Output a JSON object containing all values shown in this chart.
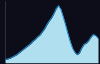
{
  "x": [
    0,
    1,
    2,
    3,
    4,
    5,
    6,
    7,
    8,
    9,
    10,
    11,
    12,
    13,
    14,
    15,
    16,
    17,
    18,
    19,
    20,
    21,
    22,
    23,
    24,
    25,
    26,
    27,
    28,
    29,
    30,
    31,
    32,
    33,
    34,
    35,
    36,
    37,
    38,
    39,
    40
  ],
  "y": [
    0.05,
    0.06,
    0.07,
    0.09,
    0.11,
    0.13,
    0.16,
    0.19,
    0.22,
    0.25,
    0.28,
    0.31,
    0.35,
    0.38,
    0.42,
    0.45,
    0.5,
    0.55,
    0.62,
    0.68,
    0.73,
    0.8,
    0.88,
    0.93,
    0.87,
    0.75,
    0.62,
    0.48,
    0.35,
    0.24,
    0.17,
    0.13,
    0.16,
    0.24,
    0.3,
    0.32,
    0.36,
    0.42,
    0.46,
    0.44,
    0.4
  ],
  "line_color": "#1b8cce",
  "fill_color": "#b0dff0",
  "background_color": "#0d0d1a",
  "ylim": [
    0.0,
    1.0
  ],
  "xlim": [
    0,
    40
  ]
}
